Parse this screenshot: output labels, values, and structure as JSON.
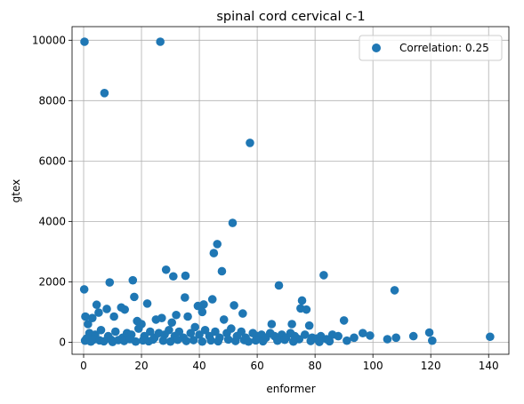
{
  "chart_data": {
    "type": "scatter",
    "title": "spinal cord cervical c-1",
    "xlabel": "enformer",
    "ylabel": "gtex",
    "xlim": [
      -4,
      147
    ],
    "ylim": [
      -400,
      10450
    ],
    "xticks": [
      0,
      20,
      40,
      60,
      80,
      100,
      120,
      140
    ],
    "yticks": [
      0,
      2000,
      4000,
      6000,
      8000,
      10000
    ],
    "grid": true,
    "legend_position": "top-right",
    "marker_color": "#1f77b4",
    "series": [
      {
        "name": "Correlation: 0.25",
        "points": [
          [
            0.3,
            9950
          ],
          [
            26.5,
            9950
          ],
          [
            7.2,
            8250
          ],
          [
            57.5,
            6600
          ],
          [
            51.5,
            3950
          ],
          [
            46.2,
            3250
          ],
          [
            45.0,
            2950
          ],
          [
            28.5,
            2400
          ],
          [
            47.8,
            2350
          ],
          [
            83.0,
            2220
          ],
          [
            35.2,
            2200
          ],
          [
            31.0,
            2180
          ],
          [
            17.0,
            2050
          ],
          [
            9.0,
            1980
          ],
          [
            67.5,
            1880
          ],
          [
            0.2,
            1750
          ],
          [
            107.5,
            1720
          ],
          [
            17.5,
            1500
          ],
          [
            35.0,
            1480
          ],
          [
            44.5,
            1420
          ],
          [
            75.5,
            1380
          ],
          [
            22.0,
            1280
          ],
          [
            52.0,
            1220
          ],
          [
            41.5,
            1250
          ],
          [
            39.5,
            1200
          ],
          [
            4.5,
            1240
          ],
          [
            13.0,
            1150
          ],
          [
            8.0,
            1100
          ],
          [
            14.2,
            1080
          ],
          [
            75.0,
            1120
          ],
          [
            77.0,
            1080
          ],
          [
            5.2,
            980
          ],
          [
            32.0,
            900
          ],
          [
            55.0,
            950
          ],
          [
            41.0,
            1000
          ],
          [
            0.6,
            850
          ],
          [
            3.0,
            800
          ],
          [
            10.5,
            850
          ],
          [
            27.0,
            800
          ],
          [
            36.0,
            850
          ],
          [
            48.5,
            750
          ],
          [
            25.0,
            750
          ],
          [
            18.5,
            700
          ],
          [
            90.0,
            720
          ],
          [
            1.5,
            600
          ],
          [
            65.0,
            600
          ],
          [
            72.0,
            600
          ],
          [
            78.0,
            550
          ],
          [
            20.0,
            600
          ],
          [
            30.5,
            650
          ],
          [
            2.0,
            300
          ],
          [
            4.0,
            250
          ],
          [
            6.0,
            400
          ],
          [
            8.5,
            200
          ],
          [
            11.0,
            350
          ],
          [
            13.5,
            150
          ],
          [
            15.0,
            300
          ],
          [
            16.5,
            250
          ],
          [
            19.0,
            450
          ],
          [
            21.0,
            200
          ],
          [
            23.0,
            350
          ],
          [
            24.5,
            150
          ],
          [
            26.0,
            300
          ],
          [
            28.0,
            250
          ],
          [
            29.5,
            400
          ],
          [
            31.5,
            200
          ],
          [
            33.0,
            350
          ],
          [
            34.5,
            150
          ],
          [
            37.0,
            300
          ],
          [
            38.5,
            500
          ],
          [
            40.0,
            250
          ],
          [
            42.0,
            400
          ],
          [
            43.5,
            200
          ],
          [
            45.5,
            350
          ],
          [
            47.0,
            150
          ],
          [
            49.5,
            300
          ],
          [
            51.0,
            450
          ],
          [
            53.0,
            200
          ],
          [
            54.5,
            350
          ],
          [
            56.0,
            150
          ],
          [
            58.5,
            300
          ],
          [
            60.0,
            200
          ],
          [
            61.5,
            250
          ],
          [
            63.0,
            150
          ],
          [
            64.5,
            300
          ],
          [
            66.0,
            200
          ],
          [
            68.5,
            250
          ],
          [
            70.0,
            150
          ],
          [
            71.5,
            300
          ],
          [
            73.0,
            200
          ],
          [
            74.5,
            100
          ],
          [
            76.5,
            250
          ],
          [
            79.0,
            150
          ],
          [
            80.5,
            120
          ],
          [
            82.0,
            200
          ],
          [
            84.0,
            100
          ],
          [
            86.0,
            250
          ],
          [
            88.0,
            200
          ],
          [
            91.0,
            50
          ],
          [
            93.5,
            150
          ],
          [
            96.5,
            300
          ],
          [
            99.0,
            220
          ],
          [
            105.0,
            100
          ],
          [
            108.0,
            150
          ],
          [
            114.0,
            200
          ],
          [
            119.5,
            320
          ],
          [
            120.5,
            50
          ],
          [
            140.5,
            180
          ],
          [
            0.5,
            50
          ],
          [
            1.0,
            120
          ],
          [
            2.5,
            20
          ],
          [
            3.5,
            90
          ],
          [
            5.5,
            60
          ],
          [
            7.0,
            30
          ],
          [
            9.5,
            80
          ],
          [
            10.0,
            10
          ],
          [
            12.0,
            70
          ],
          [
            14.0,
            40
          ],
          [
            16.0,
            100
          ],
          [
            18.0,
            20
          ],
          [
            20.5,
            60
          ],
          [
            22.5,
            30
          ],
          [
            24.0,
            90
          ],
          [
            27.5,
            50
          ],
          [
            30.0,
            20
          ],
          [
            32.5,
            80
          ],
          [
            35.5,
            40
          ],
          [
            38.0,
            70
          ],
          [
            41.0,
            20
          ],
          [
            44.0,
            60
          ],
          [
            46.5,
            30
          ],
          [
            50.0,
            90
          ],
          [
            52.5,
            40
          ],
          [
            55.5,
            70
          ],
          [
            57.0,
            20
          ],
          [
            59.5,
            60
          ],
          [
            62.0,
            30
          ],
          [
            67.0,
            50
          ],
          [
            69.5,
            80
          ],
          [
            72.5,
            20
          ],
          [
            78.5,
            40
          ],
          [
            81.5,
            10
          ],
          [
            85.0,
            30
          ]
        ]
      }
    ]
  }
}
